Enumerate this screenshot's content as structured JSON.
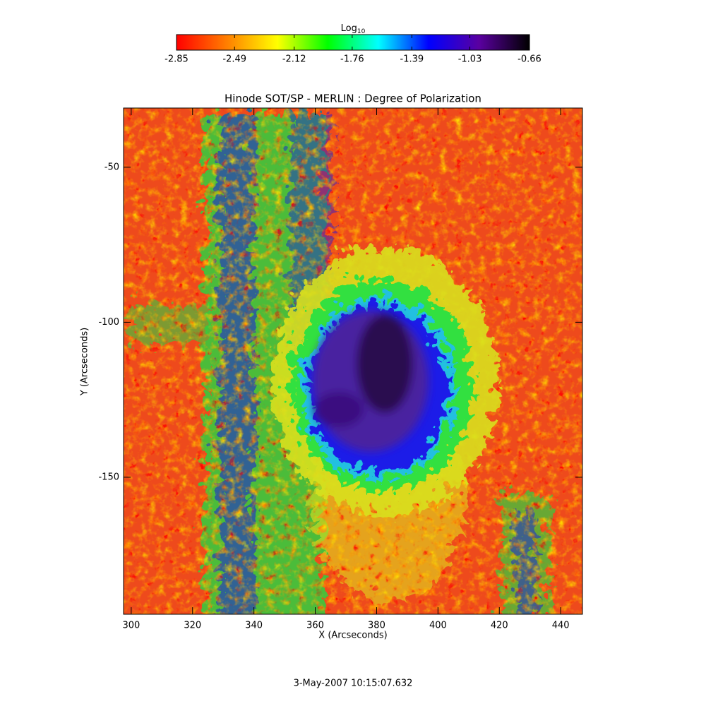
{
  "chart_data": {
    "type": "image",
    "title": "Hinode SOT/SP - MERLIN : Degree of Polarization",
    "x_label": "X (Arcseconds)",
    "y_label": "Y (Arcseconds)",
    "xlim": [
      297.5,
      447.1
    ],
    "xticks": [
      300,
      320,
      340,
      360,
      380,
      400,
      420,
      440
    ],
    "ylim": [
      -30.9,
      -194.2
    ],
    "yticks": [
      -50,
      -100,
      -150
    ],
    "colorbar": {
      "label": "Log",
      "label_subscript": "10",
      "lim": [
        -2.85,
        -0.66
      ],
      "ticks": [
        -2.85,
        -2.49,
        -2.12,
        -1.76,
        -1.39,
        -1.03,
        -0.66
      ],
      "colormap": [
        "#ff0000",
        "#ff7f00",
        "#ffff00",
        "#00ff00",
        "#00ffff",
        "#0000ff",
        "#5a00a0",
        "#000000"
      ]
    },
    "footer": "3-May-2007 10:15:07.632"
  }
}
